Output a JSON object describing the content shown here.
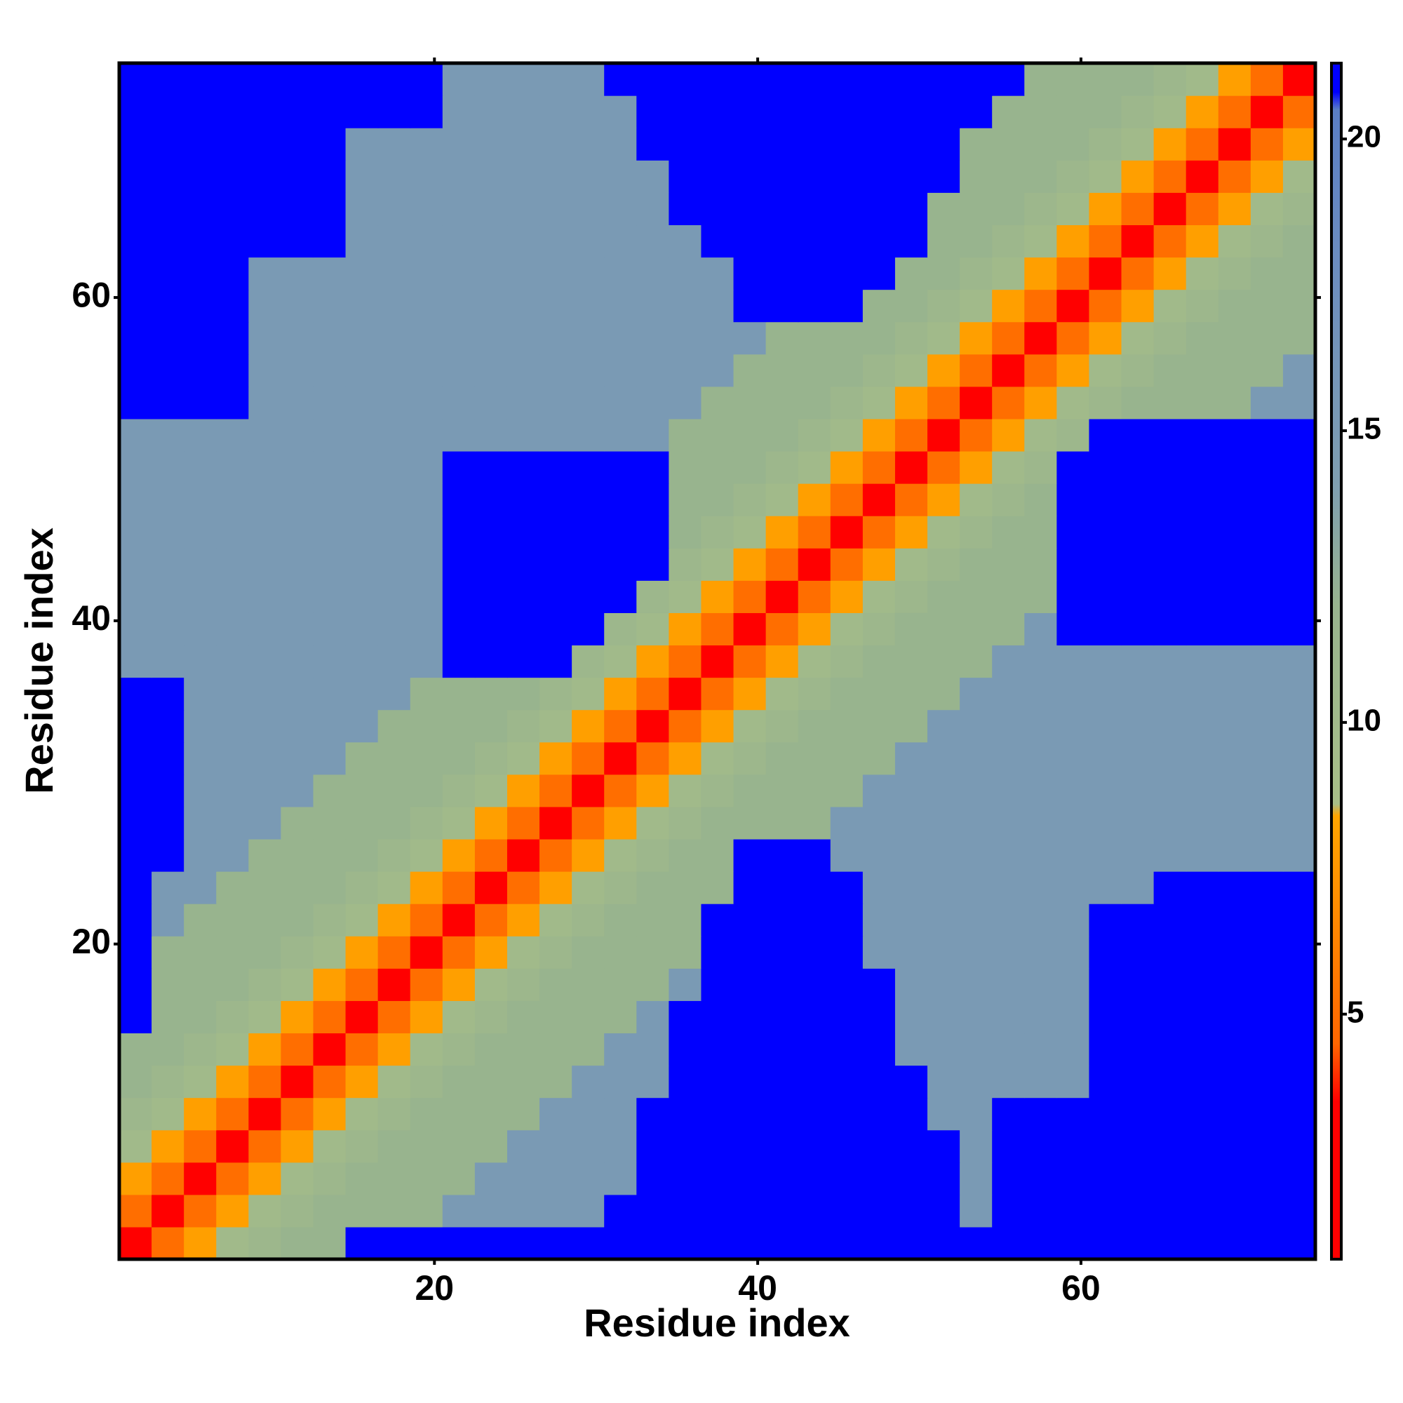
{
  "chart_data": {
    "type": "heatmap",
    "xlabel": "Residue index",
    "ylabel": "Residue index",
    "x": [
      1.5,
      3.5,
      5.5,
      7.5,
      9.5,
      11.5,
      13.5,
      15.5,
      17.5,
      19.5,
      21.5,
      23.5,
      25.5,
      27.5,
      29.5,
      31.5,
      33.5,
      35.5,
      37.5,
      39.5,
      41.5,
      43.5,
      45.5,
      47.5,
      49.5,
      51.5,
      53.5,
      55.5,
      57.5,
      59.5,
      61.5,
      63.5,
      65.5,
      67.5,
      69.5,
      71.5,
      73.5
    ],
    "y": [
      1.5,
      3.5,
      5.5,
      7.5,
      9.5,
      11.5,
      13.5,
      15.5,
      17.5,
      19.5,
      21.5,
      23.5,
      25.5,
      27.5,
      29.5,
      31.5,
      33.5,
      35.5,
      37.5,
      39.5,
      41.5,
      43.5,
      45.5,
      47.5,
      49.5,
      51.5,
      53.5,
      55.5,
      57.5,
      59.5,
      61.5,
      63.5,
      65.5,
      67.5,
      69.5,
      71.5,
      73.5
    ],
    "z": [
      [
        2,
        5,
        8,
        10,
        11,
        12,
        12,
        21,
        21,
        21,
        21,
        21,
        21,
        21,
        21,
        21,
        21,
        21,
        21,
        21,
        21,
        21,
        21,
        21,
        21,
        21,
        21,
        21,
        21,
        21,
        21,
        21,
        21,
        21,
        21,
        21,
        21
      ],
      [
        5,
        2,
        5,
        8,
        10,
        11,
        12,
        12,
        12,
        12,
        15,
        15,
        15,
        15,
        15,
        21,
        21,
        21,
        21,
        21,
        21,
        21,
        21,
        21,
        21,
        21,
        15,
        21,
        21,
        21,
        21,
        21,
        21,
        21,
        21,
        21,
        21
      ],
      [
        8,
        5,
        2,
        5,
        8,
        10,
        11,
        12,
        12,
        12,
        12,
        15,
        15,
        15,
        15,
        15,
        21,
        21,
        21,
        21,
        21,
        21,
        21,
        21,
        21,
        21,
        15,
        21,
        21,
        21,
        21,
        21,
        21,
        21,
        21,
        21,
        21
      ],
      [
        10,
        8,
        5,
        2,
        5,
        8,
        10,
        11,
        12,
        12,
        12,
        12,
        15,
        15,
        15,
        15,
        21,
        21,
        21,
        21,
        21,
        21,
        21,
        21,
        21,
        21,
        15,
        21,
        21,
        21,
        21,
        21,
        21,
        21,
        21,
        21,
        21
      ],
      [
        11,
        10,
        8,
        5,
        2,
        5,
        8,
        10,
        11,
        12,
        12,
        12,
        12,
        15,
        15,
        15,
        21,
        21,
        21,
        21,
        21,
        21,
        21,
        21,
        21,
        15,
        15,
        21,
        21,
        21,
        21,
        21,
        21,
        21,
        21,
        21,
        21
      ],
      [
        12,
        11,
        10,
        8,
        5,
        2,
        5,
        8,
        10,
        11,
        12,
        12,
        12,
        12,
        15,
        15,
        15,
        21,
        21,
        21,
        21,
        21,
        21,
        21,
        21,
        15,
        15,
        15,
        15,
        15,
        21,
        21,
        21,
        21,
        21,
        21,
        21
      ],
      [
        12,
        12,
        11,
        10,
        8,
        5,
        2,
        5,
        8,
        10,
        11,
        12,
        12,
        12,
        12,
        15,
        15,
        21,
        21,
        21,
        21,
        21,
        21,
        21,
        15,
        15,
        15,
        15,
        15,
        15,
        21,
        21,
        21,
        21,
        21,
        21,
        21
      ],
      [
        21,
        12,
        12,
        11,
        10,
        8,
        5,
        2,
        5,
        8,
        10,
        11,
        12,
        12,
        12,
        12,
        15,
        21,
        21,
        21,
        21,
        21,
        21,
        21,
        15,
        15,
        15,
        15,
        15,
        15,
        21,
        21,
        21,
        21,
        21,
        21,
        21
      ],
      [
        21,
        12,
        12,
        12,
        11,
        10,
        8,
        5,
        2,
        5,
        8,
        10,
        11,
        12,
        12,
        12,
        12,
        15,
        21,
        21,
        21,
        21,
        21,
        21,
        15,
        15,
        15,
        15,
        15,
        15,
        21,
        21,
        21,
        21,
        21,
        21,
        21
      ],
      [
        21,
        12,
        12,
        12,
        12,
        11,
        10,
        8,
        5,
        2,
        5,
        8,
        10,
        11,
        12,
        12,
        12,
        12,
        21,
        21,
        21,
        21,
        21,
        15,
        15,
        15,
        15,
        15,
        15,
        15,
        21,
        21,
        21,
        21,
        21,
        21,
        21
      ],
      [
        21,
        15,
        12,
        12,
        12,
        12,
        11,
        10,
        8,
        5,
        2,
        5,
        8,
        10,
        11,
        12,
        12,
        12,
        21,
        21,
        21,
        21,
        21,
        15,
        15,
        15,
        15,
        15,
        15,
        15,
        21,
        21,
        21,
        21,
        21,
        21,
        21
      ],
      [
        21,
        15,
        15,
        12,
        12,
        12,
        12,
        11,
        10,
        8,
        5,
        2,
        5,
        8,
        10,
        11,
        12,
        12,
        12,
        21,
        21,
        21,
        21,
        15,
        15,
        15,
        15,
        15,
        15,
        15,
        15,
        15,
        21,
        21,
        21,
        21,
        21
      ],
      [
        21,
        21,
        15,
        15,
        12,
        12,
        12,
        12,
        11,
        10,
        8,
        5,
        2,
        5,
        8,
        10,
        11,
        12,
        12,
        21,
        21,
        21,
        15,
        15,
        15,
        15,
        15,
        15,
        15,
        15,
        15,
        15,
        15,
        15,
        15,
        15,
        15
      ],
      [
        21,
        21,
        15,
        15,
        15,
        12,
        12,
        12,
        12,
        11,
        10,
        8,
        5,
        2,
        5,
        8,
        10,
        11,
        12,
        12,
        12,
        12,
        15,
        15,
        15,
        15,
        15,
        15,
        15,
        15,
        15,
        15,
        15,
        15,
        15,
        15,
        15
      ],
      [
        21,
        21,
        15,
        15,
        15,
        15,
        12,
        12,
        12,
        12,
        11,
        10,
        8,
        5,
        2,
        5,
        8,
        10,
        11,
        12,
        12,
        12,
        12,
        15,
        15,
        15,
        15,
        15,
        15,
        15,
        15,
        15,
        15,
        15,
        15,
        15,
        15
      ],
      [
        21,
        21,
        15,
        15,
        15,
        15,
        15,
        12,
        12,
        12,
        12,
        11,
        10,
        8,
        5,
        2,
        5,
        8,
        10,
        11,
        12,
        12,
        12,
        12,
        15,
        15,
        15,
        15,
        15,
        15,
        15,
        15,
        15,
        15,
        15,
        15,
        15
      ],
      [
        21,
        21,
        15,
        15,
        15,
        15,
        15,
        15,
        12,
        12,
        12,
        12,
        11,
        10,
        8,
        5,
        2,
        5,
        8,
        10,
        11,
        12,
        12,
        12,
        12,
        15,
        15,
        15,
        15,
        15,
        15,
        15,
        15,
        15,
        15,
        15,
        15
      ],
      [
        21,
        21,
        15,
        15,
        15,
        15,
        15,
        15,
        15,
        12,
        12,
        12,
        12,
        11,
        10,
        8,
        5,
        2,
        5,
        8,
        10,
        11,
        12,
        12,
        12,
        12,
        15,
        15,
        15,
        15,
        15,
        15,
        15,
        15,
        15,
        15,
        15
      ],
      [
        15,
        15,
        15,
        15,
        15,
        15,
        15,
        15,
        15,
        15,
        21,
        21,
        21,
        21,
        11,
        10,
        8,
        5,
        2,
        5,
        8,
        10,
        11,
        12,
        12,
        12,
        12,
        15,
        15,
        15,
        15,
        15,
        15,
        15,
        15,
        15,
        15
      ],
      [
        15,
        15,
        15,
        15,
        15,
        15,
        15,
        15,
        15,
        15,
        21,
        21,
        21,
        21,
        21,
        11,
        10,
        8,
        5,
        2,
        5,
        8,
        10,
        11,
        12,
        12,
        12,
        12,
        15,
        21,
        21,
        21,
        21,
        21,
        21,
        21,
        21
      ],
      [
        15,
        15,
        15,
        15,
        15,
        15,
        15,
        15,
        15,
        15,
        21,
        21,
        21,
        21,
        21,
        21,
        11,
        10,
        8,
        5,
        2,
        5,
        8,
        10,
        11,
        12,
        12,
        12,
        12,
        21,
        21,
        21,
        21,
        21,
        21,
        21,
        21
      ],
      [
        15,
        15,
        15,
        15,
        15,
        15,
        15,
        15,
        15,
        15,
        21,
        21,
        21,
        21,
        21,
        21,
        21,
        11,
        10,
        8,
        5,
        2,
        5,
        8,
        10,
        11,
        12,
        12,
        12,
        21,
        21,
        21,
        21,
        21,
        21,
        21,
        21
      ],
      [
        15,
        15,
        15,
        15,
        15,
        15,
        15,
        15,
        15,
        15,
        21,
        21,
        21,
        21,
        21,
        21,
        21,
        12,
        11,
        10,
        8,
        5,
        2,
        5,
        8,
        10,
        11,
        12,
        12,
        21,
        21,
        21,
        21,
        21,
        21,
        21,
        21
      ],
      [
        15,
        15,
        15,
        15,
        15,
        15,
        15,
        15,
        15,
        15,
        21,
        21,
        21,
        21,
        21,
        21,
        21,
        12,
        12,
        11,
        10,
        8,
        5,
        2,
        5,
        8,
        10,
        11,
        12,
        21,
        21,
        21,
        21,
        21,
        21,
        21,
        21
      ],
      [
        15,
        15,
        15,
        15,
        15,
        15,
        15,
        15,
        15,
        15,
        21,
        21,
        21,
        21,
        21,
        21,
        21,
        12,
        12,
        12,
        11,
        10,
        8,
        5,
        2,
        5,
        8,
        10,
        11,
        21,
        21,
        21,
        21,
        21,
        21,
        21,
        21
      ],
      [
        15,
        15,
        15,
        15,
        15,
        15,
        15,
        15,
        15,
        15,
        15,
        15,
        15,
        15,
        15,
        15,
        15,
        12,
        12,
        12,
        12,
        11,
        10,
        8,
        5,
        2,
        5,
        8,
        10,
        11,
        21,
        21,
        21,
        21,
        21,
        21,
        21
      ],
      [
        21,
        21,
        21,
        21,
        15,
        15,
        15,
        15,
        15,
        15,
        15,
        15,
        15,
        15,
        15,
        15,
        15,
        15,
        12,
        12,
        12,
        12,
        11,
        10,
        8,
        5,
        2,
        5,
        8,
        10,
        11,
        12,
        12,
        12,
        12,
        15,
        15
      ],
      [
        21,
        21,
        21,
        21,
        15,
        15,
        15,
        15,
        15,
        15,
        15,
        15,
        15,
        15,
        15,
        15,
        15,
        15,
        15,
        12,
        12,
        12,
        12,
        11,
        10,
        8,
        5,
        2,
        5,
        8,
        10,
        11,
        12,
        12,
        12,
        12,
        15
      ],
      [
        21,
        21,
        21,
        21,
        15,
        15,
        15,
        15,
        15,
        15,
        15,
        15,
        15,
        15,
        15,
        15,
        15,
        15,
        15,
        15,
        12,
        12,
        12,
        12,
        11,
        10,
        8,
        5,
        2,
        5,
        8,
        10,
        11,
        12,
        12,
        12,
        12
      ],
      [
        21,
        21,
        21,
        21,
        15,
        15,
        15,
        15,
        15,
        15,
        15,
        15,
        15,
        15,
        15,
        15,
        15,
        15,
        15,
        21,
        21,
        21,
        21,
        12,
        12,
        11,
        10,
        8,
        5,
        2,
        5,
        8,
        10,
        11,
        12,
        12,
        12
      ],
      [
        21,
        21,
        21,
        21,
        15,
        15,
        15,
        15,
        15,
        15,
        15,
        15,
        15,
        15,
        15,
        15,
        15,
        15,
        15,
        21,
        21,
        21,
        21,
        21,
        12,
        12,
        11,
        10,
        8,
        5,
        2,
        5,
        8,
        10,
        11,
        12,
        12
      ],
      [
        21,
        21,
        21,
        21,
        21,
        21,
        21,
        15,
        15,
        15,
        15,
        15,
        15,
        15,
        15,
        15,
        15,
        15,
        21,
        21,
        21,
        21,
        21,
        21,
        21,
        12,
        12,
        11,
        10,
        8,
        5,
        2,
        5,
        8,
        10,
        11,
        12
      ],
      [
        21,
        21,
        21,
        21,
        21,
        21,
        21,
        15,
        15,
        15,
        15,
        15,
        15,
        15,
        15,
        15,
        15,
        21,
        21,
        21,
        21,
        21,
        21,
        21,
        21,
        12,
        12,
        12,
        11,
        10,
        8,
        5,
        2,
        5,
        8,
        10,
        11
      ],
      [
        21,
        21,
        21,
        21,
        21,
        21,
        21,
        15,
        15,
        15,
        15,
        15,
        15,
        15,
        15,
        15,
        15,
        21,
        21,
        21,
        21,
        21,
        21,
        21,
        21,
        21,
        12,
        12,
        12,
        11,
        10,
        8,
        5,
        2,
        5,
        8,
        10
      ],
      [
        21,
        21,
        21,
        21,
        21,
        21,
        21,
        15,
        15,
        15,
        15,
        15,
        15,
        15,
        15,
        15,
        21,
        21,
        21,
        21,
        21,
        21,
        21,
        21,
        21,
        21,
        12,
        12,
        12,
        12,
        11,
        10,
        8,
        5,
        2,
        5,
        8
      ],
      [
        21,
        21,
        21,
        21,
        21,
        21,
        21,
        21,
        21,
        21,
        15,
        15,
        15,
        15,
        15,
        15,
        21,
        21,
        21,
        21,
        21,
        21,
        21,
        21,
        21,
        21,
        21,
        12,
        12,
        12,
        12,
        11,
        10,
        8,
        5,
        2,
        5
      ],
      [
        21,
        21,
        21,
        21,
        21,
        21,
        21,
        21,
        21,
        21,
        15,
        15,
        15,
        15,
        15,
        21,
        21,
        21,
        21,
        21,
        21,
        21,
        21,
        21,
        21,
        21,
        21,
        21,
        12,
        12,
        12,
        12,
        11,
        10,
        8,
        5,
        2
      ]
    ],
    "xlim": [
      0.5,
      74.5
    ],
    "ylim": [
      0.5,
      74.5
    ],
    "xticks": [
      20,
      40,
      60
    ],
    "yticks": [
      20,
      40,
      60
    ],
    "zlim": [
      0.8,
      21.3
    ],
    "zticks": [
      5,
      10,
      15,
      20
    ],
    "colorscale": [
      [
        0.8,
        "#ff0000"
      ],
      [
        3.5,
        "#ff0000"
      ],
      [
        4.5,
        "#ff6600"
      ],
      [
        8.4,
        "#ffa500"
      ],
      [
        8.6,
        "#a8bf88"
      ],
      [
        12,
        "#98b48e"
      ],
      [
        14,
        "#7f9fb0"
      ],
      [
        18,
        "#6b8cc0"
      ],
      [
        20.5,
        "#5a7ec4"
      ],
      [
        20.8,
        "#0000ff"
      ],
      [
        21.3,
        "#0000ff"
      ]
    ]
  }
}
